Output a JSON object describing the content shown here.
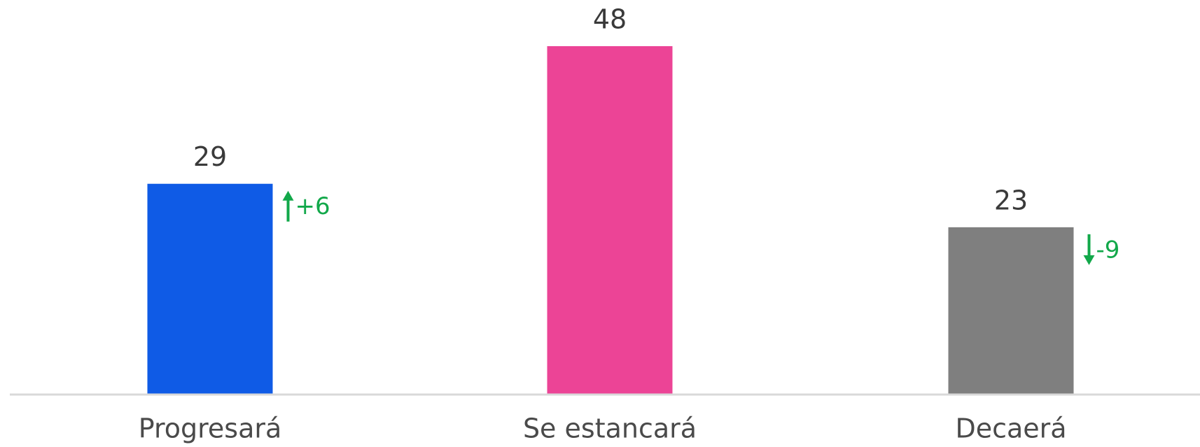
{
  "chart_data": {
    "type": "bar",
    "categories": [
      "Progresará",
      "Se estancará",
      "Decaerá"
    ],
    "values": [
      29,
      48,
      23
    ],
    "colors": [
      "#0f5be6",
      "#ec4496",
      "#7f7f7f"
    ],
    "changes": [
      6,
      null,
      -9
    ],
    "change_labels": [
      "+6",
      null,
      "-9"
    ],
    "change_color": "#12a84a",
    "ylim": [
      0,
      48
    ]
  }
}
